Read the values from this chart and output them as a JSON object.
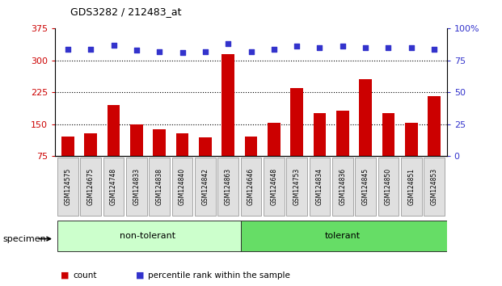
{
  "title": "GDS3282 / 212483_at",
  "categories": [
    "GSM124575",
    "GSM124675",
    "GSM124748",
    "GSM124833",
    "GSM124838",
    "GSM124840",
    "GSM124842",
    "GSM124863",
    "GSM124646",
    "GSM124648",
    "GSM124753",
    "GSM124834",
    "GSM124836",
    "GSM124845",
    "GSM124850",
    "GSM124851",
    "GSM124853"
  ],
  "bar_values": [
    120,
    128,
    195,
    150,
    138,
    128,
    118,
    315,
    120,
    152,
    235,
    175,
    182,
    255,
    175,
    152,
    215
  ],
  "percentile_values": [
    84,
    84,
    87,
    83,
    82,
    81,
    82,
    88,
    82,
    84,
    86,
    85,
    86,
    85,
    85,
    85,
    84
  ],
  "group_labels": [
    "non-tolerant",
    "tolerant"
  ],
  "group_sizes": [
    8,
    9
  ],
  "group_colors_light": [
    "#ccffcc",
    "#66dd66"
  ],
  "bar_color": "#cc0000",
  "dot_color": "#3333cc",
  "ylim_left": [
    75,
    375
  ],
  "ylim_right": [
    0,
    100
  ],
  "yticks_left": [
    75,
    150,
    225,
    300,
    375
  ],
  "yticks_right": [
    0,
    25,
    50,
    75,
    100
  ],
  "ytick_labels_right": [
    "0",
    "25",
    "50",
    "75",
    "100%"
  ],
  "dotted_lines": [
    150,
    225,
    300
  ],
  "legend_items": [
    "count",
    "percentile rank within the sample"
  ],
  "legend_colors": [
    "#cc0000",
    "#3333cc"
  ],
  "background_color": "#ffffff",
  "specimen_label": "specimen ►"
}
